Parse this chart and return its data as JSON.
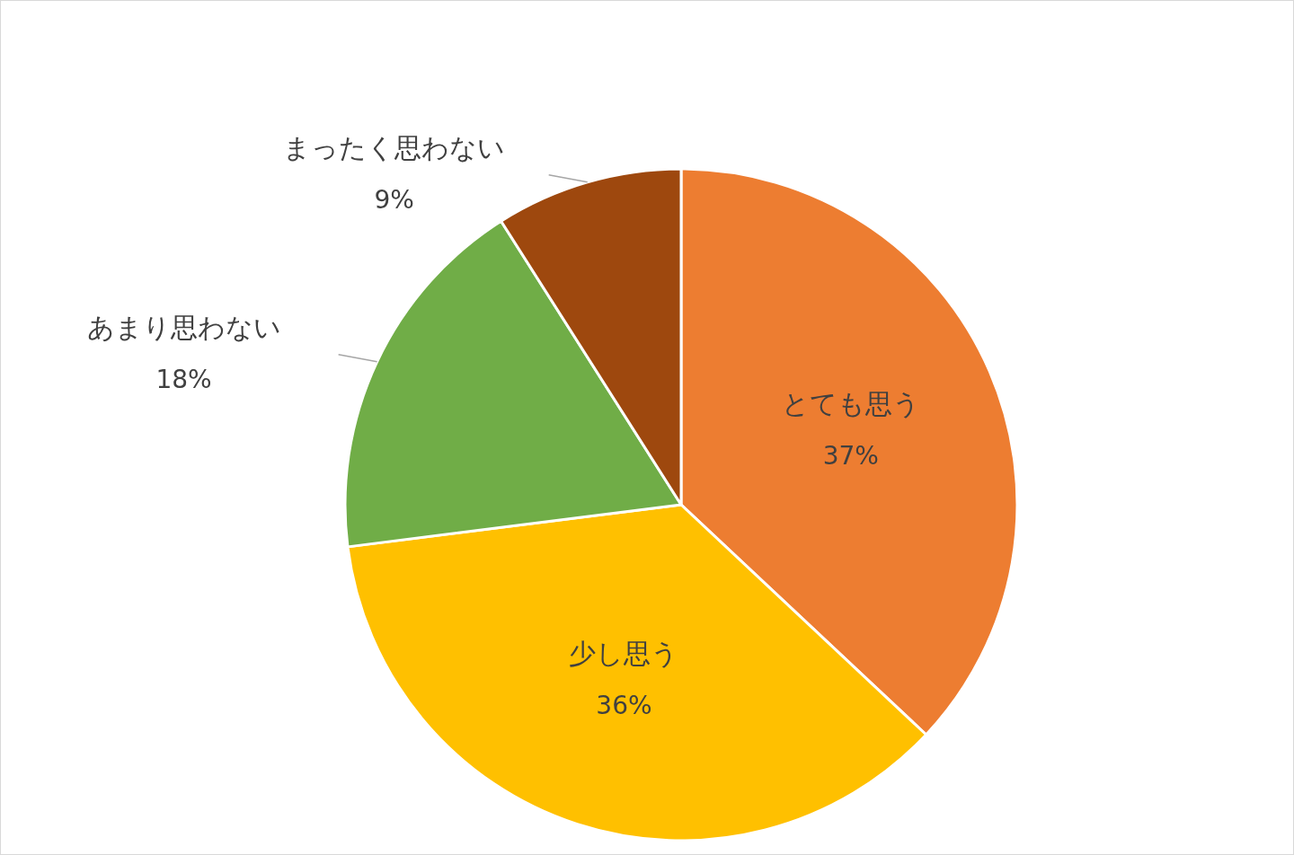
{
  "chart_data": {
    "type": "pie",
    "categories": [
      "とても思う",
      "少し思う",
      "あまり思わない",
      "まったく思わない"
    ],
    "values": [
      37,
      36,
      18,
      9
    ],
    "colors": [
      "#ed7d31",
      "#ffc000",
      "#70ad47",
      "#9e480e"
    ],
    "value_labels": [
      "37%",
      "36%",
      "18%",
      "9%"
    ]
  }
}
